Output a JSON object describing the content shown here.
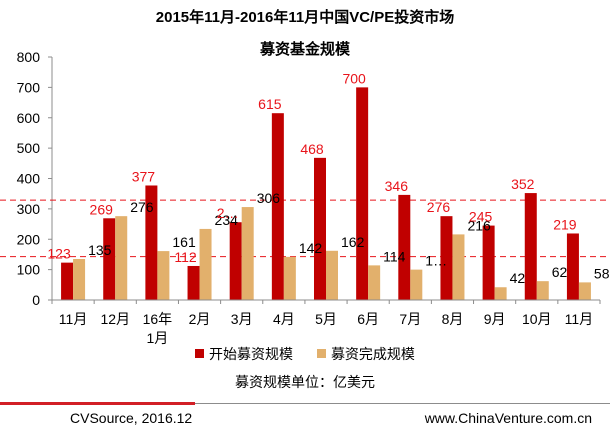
{
  "chart_data": {
    "type": "bar",
    "title": "2015年11月-2016年11月中国VC/PE投资市场",
    "subtitle": "募资基金规模",
    "categories": [
      "11月",
      "12月",
      "16年\n1月",
      "2月",
      "3月",
      "4月",
      "5月",
      "6月",
      "7月",
      "8月",
      "9月",
      "10月",
      "11月"
    ],
    "series": [
      {
        "name": "开始募资规模",
        "color": "#c00000",
        "values": [
          123,
          269,
          377,
          112,
          256,
          615,
          468,
          700,
          346,
          276,
          245,
          352,
          219
        ],
        "labels": [
          "123",
          "269",
          "377",
          "112",
          "2…",
          "615",
          "468",
          "700",
          "346",
          "276",
          "245",
          "352",
          "219"
        ]
      },
      {
        "name": "募资完成规模",
        "color": "#e2b06c",
        "values": [
          135,
          276,
          161,
          234,
          306,
          142,
          162,
          114,
          100,
          216,
          42,
          62,
          58
        ],
        "labels": [
          "135",
          "276",
          "161",
          "234",
          "306",
          "142",
          "162",
          "114",
          "1…",
          "216",
          "42",
          "62",
          "58"
        ]
      }
    ],
    "ylim": [
      0,
      800
    ],
    "yticks": [
      0,
      100,
      200,
      300,
      400,
      500,
      600,
      700,
      800
    ],
    "reference_lines": [
      {
        "value": 329,
        "color": "#e8141b",
        "style": "dashed"
      },
      {
        "value": 143,
        "color": "#e8141b",
        "style": "dashed"
      }
    ],
    "grid": false,
    "legend_position": "bottom"
  },
  "unit_note": "募资规模单位：亿美元",
  "footer": {
    "source": "CVSource, 2016.12",
    "website": "www.ChinaVenture.com.cn"
  }
}
